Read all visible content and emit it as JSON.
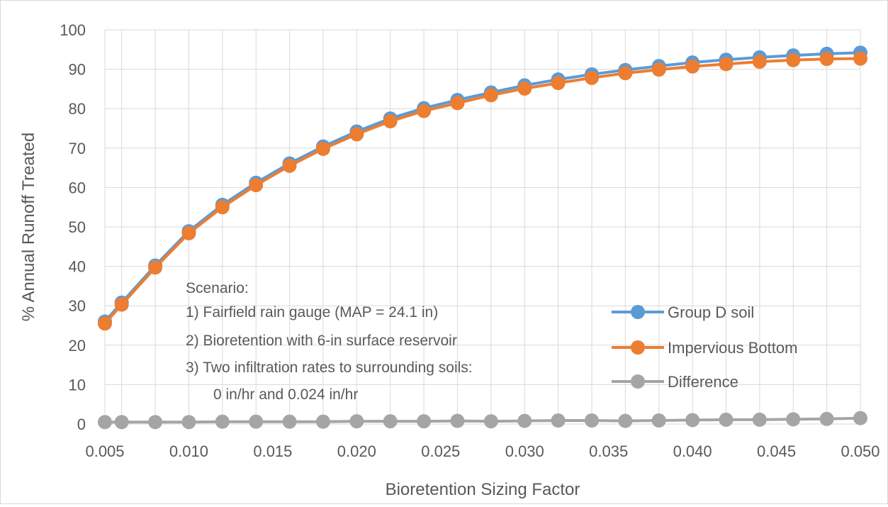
{
  "chart_data": {
    "type": "line",
    "title": "",
    "xlabel": "Bioretention Sizing Factor",
    "ylabel": "% Annual Runoff Treated",
    "xlim": [
      0.005,
      0.05
    ],
    "ylim": [
      0,
      100
    ],
    "grid": true,
    "legend": "right",
    "x": [
      0.005,
      0.006,
      0.008,
      0.01,
      0.012,
      0.014,
      0.016,
      0.018,
      0.02,
      0.022,
      0.024,
      0.026,
      0.028,
      0.03,
      0.032,
      0.034,
      0.036,
      0.038,
      0.04,
      0.042,
      0.044,
      0.046,
      0.048,
      0.05
    ],
    "x_tick_labels": [
      "0.005",
      "0.010",
      "0.015",
      "0.020",
      "0.025",
      "0.030",
      "0.035",
      "0.040",
      "0.045",
      "0.050"
    ],
    "y_tick_labels": [
      "0",
      "10",
      "20",
      "30",
      "40",
      "50",
      "60",
      "70",
      "80",
      "90",
      "100"
    ],
    "series": [
      {
        "name": "Group D soil",
        "color": "#5b9bd5",
        "values": [
          26,
          30.8,
          40.2,
          48.9,
          55.6,
          61.2,
          66.1,
          70.4,
          74.2,
          77.5,
          80.1,
          82.2,
          84.1,
          85.9,
          87.4,
          88.7,
          89.8,
          90.8,
          91.7,
          92.4,
          93.0,
          93.5,
          93.9,
          94.2
        ]
      },
      {
        "name": "Impervious Bottom",
        "color": "#ed7d31",
        "values": [
          25.5,
          30.3,
          39.7,
          48.4,
          55.0,
          60.6,
          65.5,
          69.8,
          73.5,
          76.8,
          79.4,
          81.4,
          83.4,
          85.1,
          86.5,
          87.8,
          89.0,
          89.9,
          90.7,
          91.3,
          91.9,
          92.3,
          92.6,
          92.7
        ]
      },
      {
        "name": "Difference",
        "color": "#a5a5a5",
        "values": [
          0.5,
          0.5,
          0.5,
          0.5,
          0.6,
          0.6,
          0.6,
          0.6,
          0.7,
          0.7,
          0.7,
          0.8,
          0.7,
          0.8,
          0.9,
          0.9,
          0.8,
          0.9,
          1.0,
          1.1,
          1.1,
          1.2,
          1.3,
          1.5
        ]
      }
    ],
    "annotation": [
      "Scenario:",
      "1) Fairfield rain gauge (MAP = 24.1 in)",
      "2) Bioretention with 6-in surface reservoir",
      "3) Two infiltration rates to surrounding soils:",
      "0 in/hr and 0.024 in/hr"
    ]
  }
}
